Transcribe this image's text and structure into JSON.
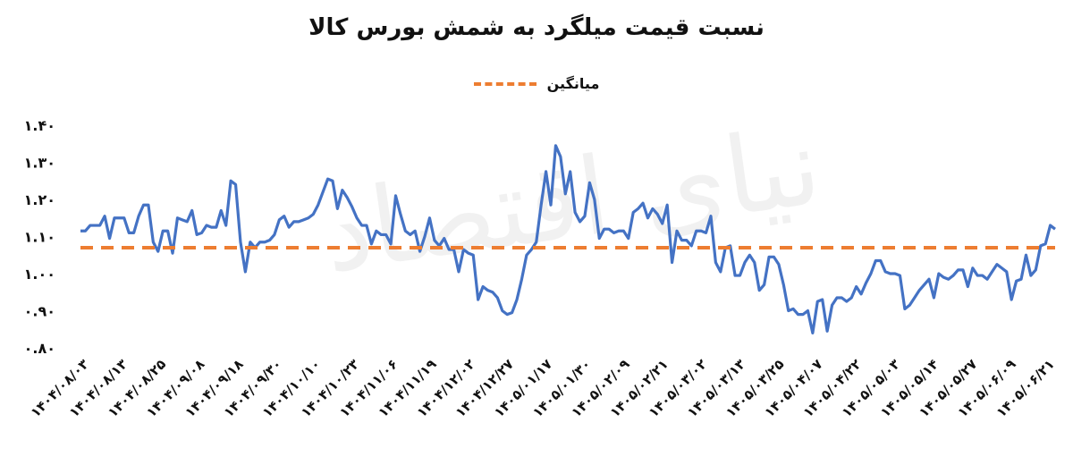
{
  "chart_data": {
    "type": "line",
    "title": "نسبت قیمت میلگرد به شمش بورس کالا",
    "xlabel": "",
    "ylabel": "",
    "ylim": [
      0.8,
      1.4
    ],
    "yticks": [
      "۱.۴۰",
      "۱.۳۰",
      "۱.۲۰",
      "۱.۱۰",
      "۱.۰۰",
      "۰.۹۰",
      "۰.۸۰"
    ],
    "ytick_values": [
      1.4,
      1.3,
      1.2,
      1.1,
      1.0,
      0.9,
      0.8
    ],
    "xticks": [
      "۱۴۰۴/۰۸/۰۳",
      "۱۴۰۴/۰۸/۱۳",
      "۱۴۰۴/۰۸/۲۵",
      "۱۴۰۴/۰۹/۰۸",
      "۱۴۰۴/۰۹/۱۸",
      "۱۴۰۴/۰۹/۳۰",
      "۱۴۰۴/۱۰/۱۰",
      "۱۴۰۴/۱۰/۲۳",
      "۱۴۰۴/۱۱/۰۶",
      "۱۴۰۴/۱۱/۱۹",
      "۱۴۰۴/۱۲/۰۲",
      "۱۴۰۴/۱۲/۲۷",
      "۱۴۰۵/۰۱/۱۷",
      "۱۴۰۵/۰۱/۳۰",
      "۱۴۰۵/۰۲/۰۹",
      "۱۴۰۵/۰۲/۲۱",
      "۱۴۰۵/۰۳/۰۲",
      "۱۴۰۵/۰۳/۱۳",
      "۱۴۰۵/۰۳/۲۵",
      "۱۴۰۵/۰۴/۰۷",
      "۱۴۰۵/۰۴/۲۲",
      "۱۴۰۵/۰۵/۰۳",
      "۱۴۰۵/۰۵/۱۴",
      "۱۴۰۵/۰۵/۲۷",
      "۱۴۰۵/۰۶/۰۹",
      "۱۴۰۵/۰۶/۲۱"
    ],
    "grid": false,
    "legend_position": "top",
    "series": [
      {
        "name": "",
        "style": "solid",
        "color": "#4472C4",
        "values": [
          1.115,
          1.115,
          1.13,
          1.13,
          1.13,
          1.155,
          1.095,
          1.15,
          1.15,
          1.15,
          1.11,
          1.11,
          1.155,
          1.185,
          1.185,
          1.085,
          1.06,
          1.115,
          1.115,
          1.055,
          1.15,
          1.145,
          1.14,
          1.17,
          1.105,
          1.11,
          1.13,
          1.125,
          1.125,
          1.17,
          1.13,
          1.25,
          1.24,
          1.085,
          1.005,
          1.085,
          1.07,
          1.085,
          1.085,
          1.09,
          1.105,
          1.145,
          1.155,
          1.125,
          1.14,
          1.14,
          1.145,
          1.15,
          1.16,
          1.185,
          1.22,
          1.255,
          1.25,
          1.175,
          1.225,
          1.205,
          1.18,
          1.15,
          1.13,
          1.13,
          1.08,
          1.115,
          1.105,
          1.105,
          1.08,
          1.21,
          1.16,
          1.115,
          1.105,
          1.115,
          1.06,
          1.1,
          1.15,
          1.09,
          1.075,
          1.095,
          1.065,
          1.065,
          1.005,
          1.065,
          1.055,
          1.05,
          0.93,
          0.965,
          0.955,
          0.95,
          0.935,
          0.9,
          0.89,
          0.895,
          0.93,
          0.985,
          1.05,
          1.065,
          1.085,
          1.185,
          1.275,
          1.185,
          1.345,
          1.315,
          1.215,
          1.275,
          1.165,
          1.14,
          1.155,
          1.245,
          1.2,
          1.095,
          1.12,
          1.12,
          1.11,
          1.115,
          1.115,
          1.095,
          1.165,
          1.175,
          1.19,
          1.15,
          1.175,
          1.16,
          1.135,
          1.185,
          1.03,
          1.115,
          1.09,
          1.09,
          1.075,
          1.115,
          1.115,
          1.11,
          1.155,
          1.03,
          1.005,
          1.07,
          1.075,
          0.995,
          0.995,
          1.03,
          1.05,
          1.03,
          0.955,
          0.97,
          1.045,
          1.045,
          1.025,
          0.97,
          0.9,
          0.905,
          0.89,
          0.89,
          0.9,
          0.84,
          0.925,
          0.93,
          0.845,
          0.915,
          0.935,
          0.935,
          0.925,
          0.935,
          0.965,
          0.945,
          0.975,
          1.0,
          1.035,
          1.035,
          1.005,
          1.0,
          1.0,
          0.995,
          0.905,
          0.915,
          0.935,
          0.955,
          0.97,
          0.985,
          0.935,
          1.0,
          0.99,
          0.985,
          0.995,
          1.01,
          1.01,
          0.965,
          1.015,
          0.995,
          0.995,
          0.985,
          1.005,
          1.025,
          1.015,
          1.005,
          0.93,
          0.98,
          0.985,
          1.05,
          0.995,
          1.01,
          1.075,
          1.08,
          1.13,
          1.12
        ]
      },
      {
        "name": "میانگین",
        "style": "dashed",
        "color": "#ED7D31",
        "values": [
          1.07
        ]
      }
    ]
  },
  "watermark": "دنیای اقتصاد"
}
